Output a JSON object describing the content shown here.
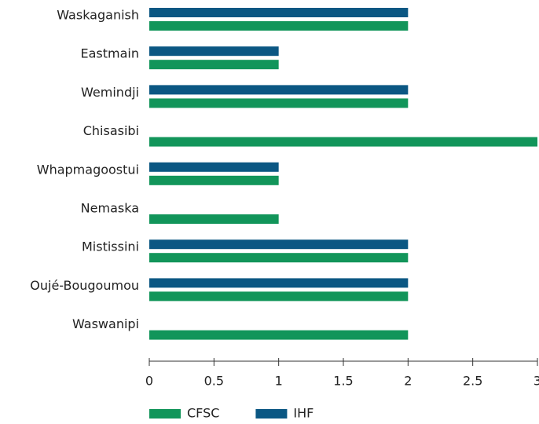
{
  "chart_data": {
    "type": "bar",
    "orientation": "horizontal",
    "categories": [
      "Waskaganish",
      "Eastmain",
      "Wemindji",
      "Chisasibi",
      "Whapmagoostui",
      "Nemaska",
      "Mistissini",
      "Oujé-Bougoumou",
      "Waswanipi"
    ],
    "series": [
      {
        "name": "CFSC",
        "color": "#12955a",
        "values": [
          2,
          1,
          2,
          3,
          1,
          1,
          2,
          2,
          2
        ]
      },
      {
        "name": "IHF",
        "color": "#0b5783",
        "values": [
          2,
          1,
          2,
          0,
          1,
          0,
          2,
          2,
          0
        ]
      }
    ],
    "xlim": [
      0,
      3
    ],
    "xticks": [
      0,
      0.5,
      1,
      1.5,
      2,
      2.5,
      3
    ],
    "legend": "bottom"
  }
}
